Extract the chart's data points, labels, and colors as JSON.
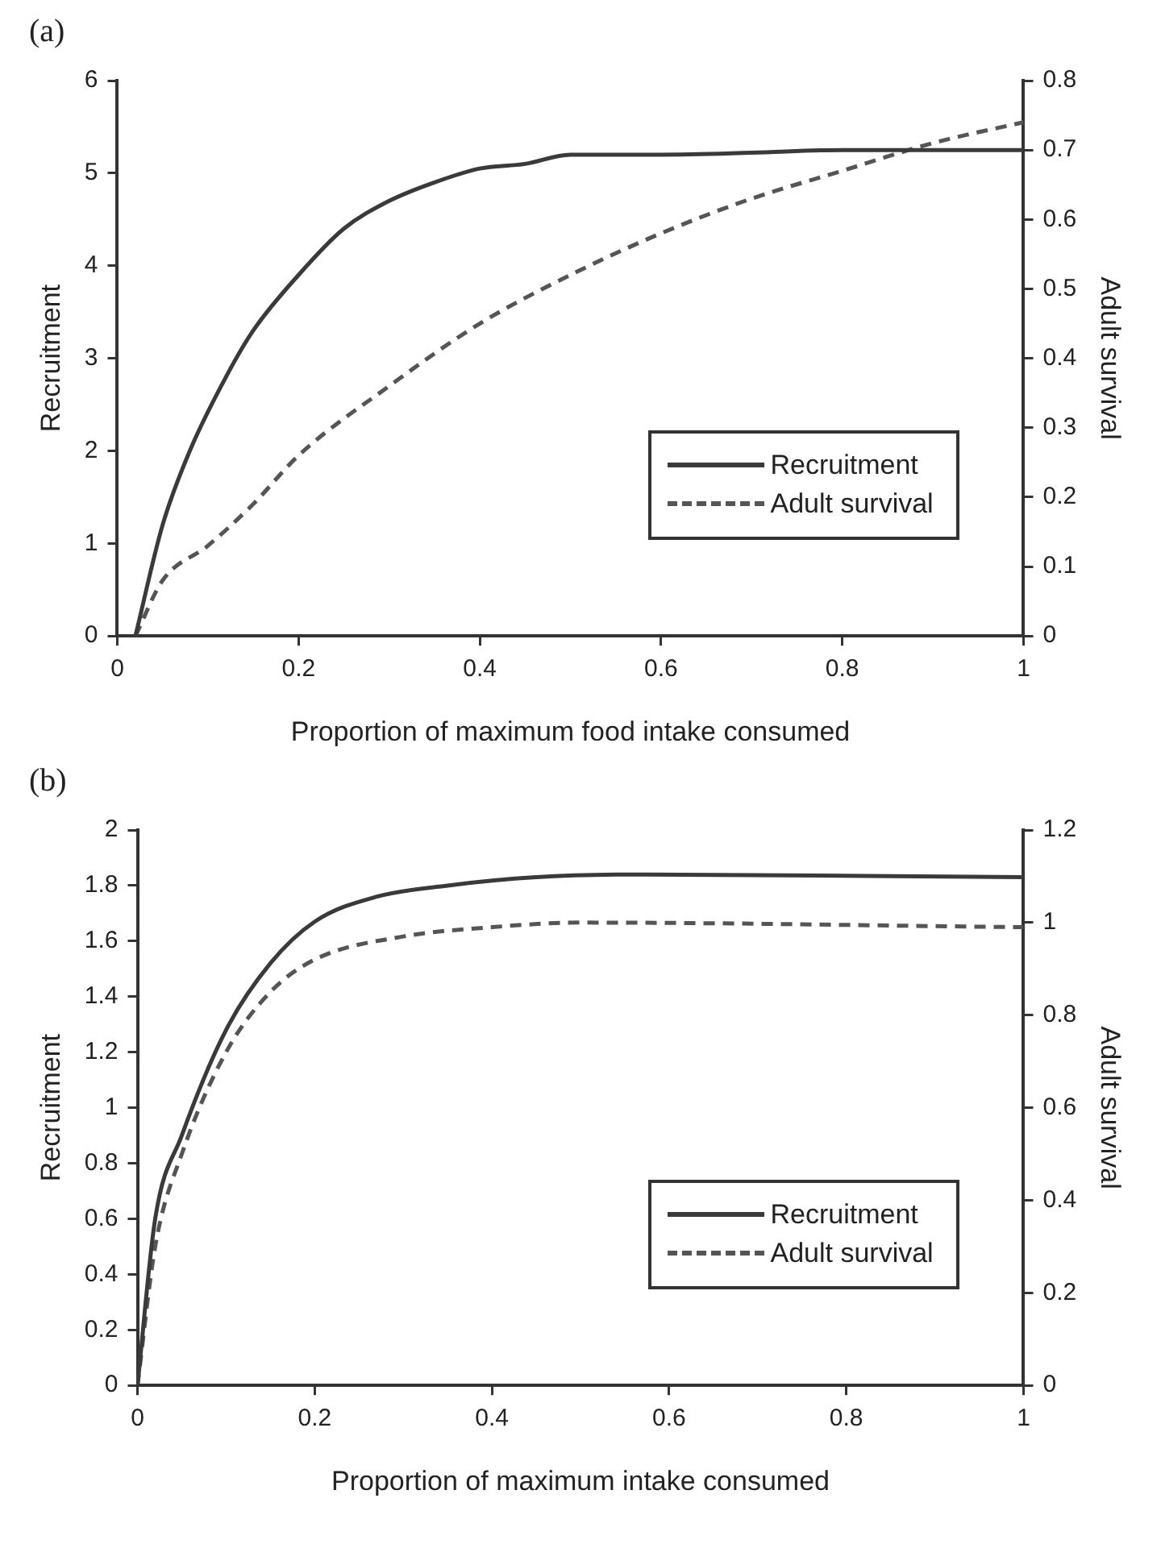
{
  "chart_data": [
    {
      "type": "line",
      "title": "(a)",
      "xlabel": "Proportion of maximum food intake consumed",
      "ylabel": "Recruitment",
      "y2label": "Adult survival",
      "xlim": [
        0,
        1
      ],
      "xticks": [
        0,
        0.2,
        0.4,
        0.6,
        0.8,
        1
      ],
      "ylim": [
        0,
        6
      ],
      "yticks": [
        0,
        1,
        2,
        3,
        4,
        5,
        6
      ],
      "y2lim": [
        0,
        0.8
      ],
      "y2ticks": [
        0,
        0.1,
        0.2,
        0.3,
        0.4,
        0.5,
        0.6,
        0.7,
        0.8
      ],
      "grid": false,
      "legend": "bottom right",
      "marker": "none",
      "series": [
        {
          "name": "Recruitment",
          "color": "#3a3a3a",
          "line_style": "solid",
          "x": [
            0.02,
            0.05,
            0.08,
            0.12,
            0.15,
            0.2,
            0.25,
            0.3,
            0.35,
            0.4,
            0.45,
            0.5,
            0.6,
            0.7,
            0.8,
            1
          ],
          "values": [
            0,
            1.2,
            2,
            2.8,
            3.3,
            3.9,
            4.4,
            4.7,
            4.9,
            5.05,
            5.1,
            5.2,
            5.2,
            5.22,
            5.25,
            5.25
          ]
        },
        {
          "name": "Adult survival",
          "color": "#555555",
          "line_style": "dashed",
          "axis": "y2",
          "x": [
            0.02,
            0.05,
            0.1,
            0.15,
            0.2,
            0.3,
            0.4,
            0.5,
            0.6,
            0.7,
            0.8,
            0.9,
            1
          ],
          "values": [
            0,
            0.08,
            0.13,
            0.19,
            0.26,
            0.36,
            0.45,
            0.52,
            0.58,
            0.63,
            0.67,
            0.71,
            0.74
          ]
        }
      ]
    },
    {
      "type": "line",
      "title": "(b)",
      "xlabel": "Proportion of maximum intake consumed",
      "ylabel": "Recruitment",
      "y2label": "Adult survival",
      "xlim": [
        0,
        1
      ],
      "xticks": [
        0,
        0.2,
        0.4,
        0.6,
        0.8,
        1
      ],
      "ylim": [
        0,
        2
      ],
      "yticks": [
        0,
        0.2,
        0.4,
        0.6,
        0.8,
        1,
        1.2,
        1.4,
        1.6,
        1.8,
        2
      ],
      "y2lim": [
        0,
        1.2
      ],
      "y2ticks": [
        0,
        0.2,
        0.4,
        0.6,
        0.8,
        1,
        1.2
      ],
      "grid": false,
      "legend": "bottom right",
      "marker": "none",
      "series": [
        {
          "name": "Recruitment",
          "color": "#3a3a3a",
          "line_style": "solid",
          "x": [
            0,
            0.02,
            0.05,
            0.1,
            0.15,
            0.2,
            0.27,
            0.35,
            0.45,
            0.57,
            1
          ],
          "values": [
            0,
            0.6,
            0.9,
            1.28,
            1.52,
            1.67,
            1.76,
            1.8,
            1.83,
            1.84,
            1.83
          ]
        },
        {
          "name": "Adult survival",
          "color": "#555555",
          "line_style": "dashed",
          "axis": "y2",
          "x": [
            0,
            0.02,
            0.05,
            0.1,
            0.15,
            0.2,
            0.3,
            0.4,
            0.5,
            1
          ],
          "values": [
            0,
            0.3,
            0.5,
            0.72,
            0.85,
            0.92,
            0.97,
            0.99,
            1,
            0.99
          ]
        }
      ]
    }
  ]
}
